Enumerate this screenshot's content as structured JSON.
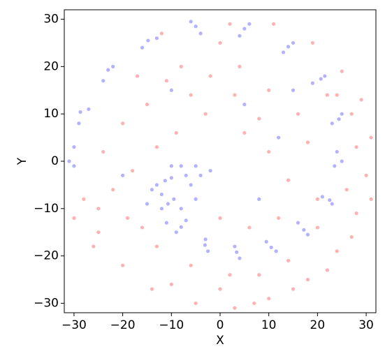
{
  "chart_data": {
    "type": "scatter",
    "xlabel": "X",
    "ylabel": "Y",
    "xlim": [
      -32,
      32
    ],
    "ylim": [
      -32,
      32
    ],
    "xticks": [
      {
        "value": -30,
        "label": "−30"
      },
      {
        "value": -20,
        "label": "−20"
      },
      {
        "value": -10,
        "label": "−10"
      },
      0,
      10,
      20,
      30
    ],
    "yticks": [
      {
        "value": -30,
        "label": "−30"
      },
      {
        "value": -20,
        "label": "−20"
      },
      {
        "value": -10,
        "label": "−10"
      },
      0,
      10,
      20,
      30
    ],
    "series": [
      {
        "color": "#ff0000",
        "x": [
          -28,
          -25,
          -20,
          -14,
          -5,
          3,
          10,
          18,
          24,
          28,
          30,
          31,
          29,
          25,
          19,
          11,
          -2,
          -8,
          -15,
          -20,
          -24,
          -18,
          -22,
          -19,
          -13,
          -6,
          2,
          8,
          14,
          20,
          26,
          28,
          27,
          22,
          16,
          10,
          4,
          -3,
          -9,
          -13,
          5,
          10,
          14,
          12,
          6,
          0,
          -26,
          -30,
          -10,
          0,
          7,
          15,
          22,
          27,
          31,
          18,
          8,
          0,
          -11,
          -17,
          -6,
          3,
          -25,
          -16,
          20,
          24,
          -12,
          2
        ],
        "y": [
          -8,
          -15,
          -22,
          -27,
          -30,
          -31,
          -29,
          -25,
          -19,
          -11,
          -3,
          5,
          13,
          19,
          25,
          29,
          18,
          20,
          12,
          8,
          2,
          -2,
          -6,
          -12,
          -18,
          -22,
          -24,
          -24,
          -21,
          -14,
          -6,
          3,
          10,
          14,
          10,
          15,
          20,
          10,
          6,
          3,
          6,
          2,
          -4,
          -12,
          -14,
          -12,
          -18,
          -12,
          -26,
          -27,
          -30,
          -27,
          -23,
          -16,
          -8,
          4,
          9,
          25,
          17,
          18,
          14,
          14,
          -10,
          -14,
          -8,
          14,
          27,
          29
        ]
      },
      {
        "color": "#0000ff",
        "x": [
          -31,
          -30,
          -30,
          -28.7,
          -29,
          -27,
          -23,
          -24,
          -22,
          -14.8,
          -16,
          -13,
          -5,
          -4,
          -6,
          5,
          4,
          6,
          14,
          13,
          15,
          20.7,
          19,
          21.5,
          24.4,
          23,
          25,
          25,
          23.5,
          24,
          22.5,
          21,
          23,
          17.2,
          16,
          18,
          10.5,
          9.5,
          11.5,
          3.4,
          3,
          4,
          -3.1,
          -3,
          -2.5,
          -8,
          -7,
          -9,
          -10.7,
          -9.5,
          -12,
          -11.3,
          -10,
          -13,
          -10,
          -8,
          -5,
          -6,
          -4,
          -12,
          -14,
          -8,
          -5,
          -2,
          -7,
          -15,
          -11,
          5,
          -10,
          12,
          8,
          -20,
          15
        ],
        "y": [
          0,
          3,
          -1,
          10.4,
          8,
          11,
          19.3,
          17,
          20,
          25.5,
          24,
          26,
          28.5,
          27,
          29.5,
          28,
          26.5,
          29,
          24.2,
          23,
          25,
          17.4,
          16.5,
          18,
          8.9,
          8,
          10,
          0,
          -1,
          2,
          -8.2,
          -7.5,
          -9,
          -14.5,
          -13,
          -15.5,
          -18.2,
          -17,
          -19,
          -19.2,
          -18,
          -20.5,
          -17.7,
          -16.5,
          -19,
          -13.9,
          -12.5,
          -15,
          -9,
          -8,
          -10,
          -4.1,
          -3.5,
          -5,
          -1,
          -1,
          -1,
          -5,
          -3,
          -7,
          -6,
          -10,
          -8,
          -2,
          -3,
          -9,
          -13,
          12,
          15,
          5,
          -8,
          -3,
          15
        ]
      }
    ]
  }
}
